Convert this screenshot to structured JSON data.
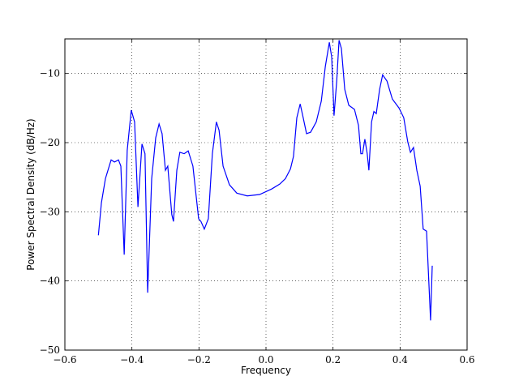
{
  "chart_data": {
    "type": "line",
    "x_label": "Frequency",
    "y_label": "Power Spectral Density (dB/Hz)",
    "xlim": [
      -0.6,
      0.6
    ],
    "ylim": [
      -50,
      -5
    ],
    "xticks": [
      {
        "value": -0.6,
        "label": "−0.6"
      },
      {
        "value": -0.4,
        "label": "−0.4"
      },
      {
        "value": -0.2,
        "label": "−0.2"
      },
      {
        "value": 0,
        "label": "0.0"
      },
      0.2,
      0.4,
      0.6
    ],
    "yticks": [
      {
        "value": -50,
        "label": "−50"
      },
      {
        "value": -40,
        "label": "−40"
      },
      {
        "value": -30,
        "label": "−30"
      },
      {
        "value": -20,
        "label": "−20"
      },
      {
        "value": -10,
        "label": "−10"
      }
    ],
    "grid": true,
    "x": [
      -0.5,
      -0.491,
      -0.479,
      -0.462,
      -0.452,
      -0.44,
      -0.433,
      -0.423,
      -0.414,
      -0.402,
      -0.392,
      -0.382,
      -0.37,
      -0.361,
      -0.353,
      -0.341,
      -0.329,
      -0.319,
      -0.31,
      -0.3,
      -0.293,
      -0.281,
      -0.276,
      -0.266,
      -0.257,
      -0.244,
      -0.232,
      -0.218,
      -0.201,
      -0.194,
      -0.184,
      -0.172,
      -0.16,
      -0.148,
      -0.14,
      -0.128,
      -0.109,
      -0.087,
      -0.056,
      -0.019,
      0.017,
      0.041,
      0.058,
      0.073,
      0.082,
      0.092,
      0.102,
      0.111,
      0.121,
      0.133,
      0.15,
      0.165,
      0.177,
      0.189,
      0.196,
      0.203,
      0.211,
      0.218,
      0.225,
      0.235,
      0.247,
      0.264,
      0.276,
      0.283,
      0.288,
      0.295,
      0.302,
      0.307,
      0.315,
      0.322,
      0.329,
      0.339,
      0.348,
      0.361,
      0.377,
      0.397,
      0.411,
      0.423,
      0.431,
      0.44,
      0.45,
      0.46,
      0.469,
      0.479,
      0.491,
      0.496
    ],
    "series": [
      {
        "color": "#0000ff",
        "values": [
          -33.4,
          -28.7,
          -25.2,
          -22.5,
          -22.8,
          -22.5,
          -23.4,
          -36.2,
          -21.1,
          -15.3,
          -17.0,
          -29.3,
          -20.2,
          -21.6,
          -41.7,
          -25.2,
          -19.3,
          -17.3,
          -18.7,
          -24.0,
          -23.4,
          -30.4,
          -31.4,
          -24.0,
          -21.4,
          -21.6,
          -21.2,
          -23.4,
          -31.0,
          -31.4,
          -32.5,
          -31.0,
          -21.6,
          -17.0,
          -18.2,
          -23.4,
          -26.1,
          -27.3,
          -27.7,
          -27.5,
          -26.7,
          -26.0,
          -25.2,
          -23.8,
          -22.0,
          -16.4,
          -14.4,
          -16.4,
          -18.7,
          -18.5,
          -17.0,
          -14.0,
          -9.0,
          -5.5,
          -7.6,
          -16.1,
          -11.1,
          -5.2,
          -6.4,
          -12.3,
          -14.6,
          -15.2,
          -17.5,
          -21.6,
          -21.6,
          -19.5,
          -21.6,
          -24.0,
          -17.0,
          -15.5,
          -15.8,
          -12.3,
          -10.2,
          -11.1,
          -13.7,
          -15.0,
          -16.4,
          -19.9,
          -21.4,
          -20.7,
          -24.0,
          -26.3,
          -32.5,
          -32.8,
          -45.7,
          -37.8
        ]
      }
    ]
  }
}
